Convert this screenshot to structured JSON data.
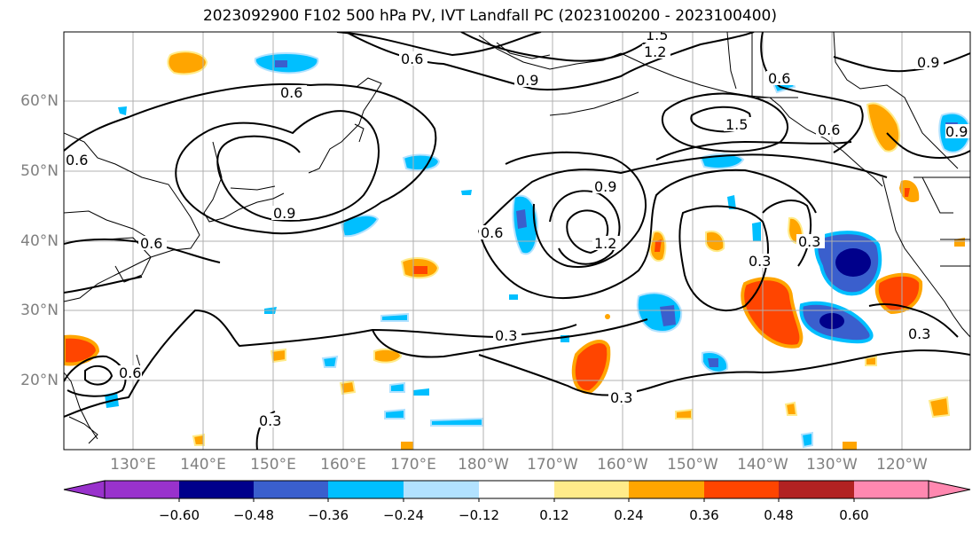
{
  "title": "2023092900 F102 500 hPa PV, IVT Landfall PC (2023100200 - 2023100400)",
  "lat_labels": [
    "60°N",
    "50°N",
    "40°N",
    "30°N",
    "20°N"
  ],
  "lon_labels": [
    "130°E",
    "140°E",
    "150°E",
    "160°E",
    "170°E",
    "180°W",
    "170°W",
    "160°W",
    "150°W",
    "140°W",
    "130°W",
    "120°W"
  ],
  "contour_labels": [
    "1.5",
    "1.2",
    "0.6",
    "0.9",
    "0.6",
    "0.6",
    "1.5",
    "0.6",
    "0.9",
    "0.9",
    "0.6",
    "0.6",
    "0.9",
    "0.9",
    "0.6",
    "1.2",
    "0.3",
    "0.3",
    "0.3",
    "0.3",
    "0.3",
    "0.6",
    "0.3"
  ],
  "colorbar": {
    "ticks": [
      "−0.60",
      "−0.48",
      "−0.36",
      "−0.24",
      "−0.12",
      "0.12",
      "0.24",
      "0.36",
      "0.48",
      "0.60"
    ],
    "colors": [
      "#9932cc",
      "#00008b",
      "#3a5fcd",
      "#00bfff",
      "#b2e2ff",
      "#ffffff",
      "#ffeb8a",
      "#ffa500",
      "#ff4500",
      "#b22222",
      "#ff88b0"
    ]
  }
}
